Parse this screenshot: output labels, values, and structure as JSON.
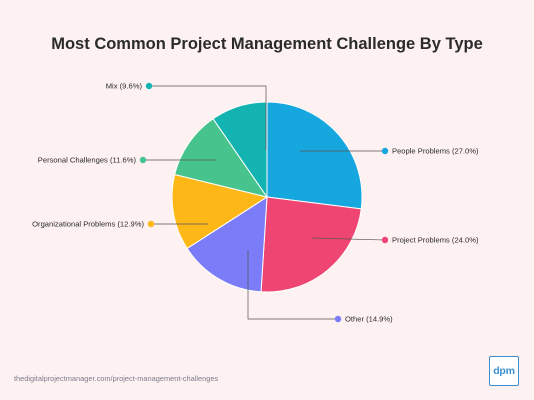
{
  "chart_data": {
    "type": "pie",
    "title": "Most Common Project Management Challenge By Type",
    "slices": [
      {
        "name": "People Problems",
        "value": 27.0,
        "label": "People Problems (27.0%)",
        "color": "#17a7df"
      },
      {
        "name": "Project Problems",
        "value": 24.0,
        "label": "Project Problems (24.0%)",
        "color": "#ef4572"
      },
      {
        "name": "Other",
        "value": 14.9,
        "label": "Other (14.9%)",
        "color": "#7b7cf7"
      },
      {
        "name": "Organizational Problems",
        "value": 12.9,
        "label": "Organizational Problems (12.9%)",
        "color": "#fdb818"
      },
      {
        "name": "Personal Challenges",
        "value": 11.6,
        "label": "Personal Challenges (11.6%)",
        "color": "#47c38d"
      },
      {
        "name": "Mix",
        "value": 9.6,
        "label": "Mix (9.6%)",
        "color": "#12b3b1"
      }
    ],
    "start_angle": "12 o'clock",
    "direction": "clockwise"
  },
  "footer": {
    "source": "thedigitalprojectmanager.com/project-management-challenges"
  },
  "logo": {
    "text": "dpm",
    "color": "#3b8fd1"
  }
}
